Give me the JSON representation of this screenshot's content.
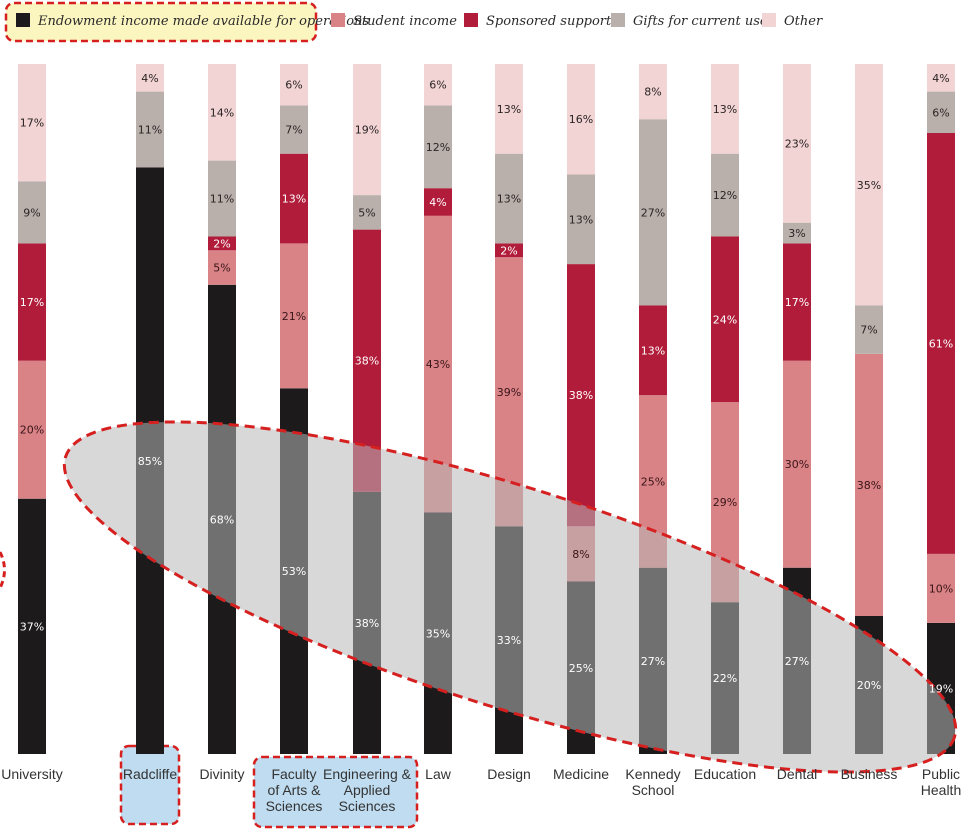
{
  "chart_data": {
    "type": "bar",
    "stacked": true,
    "orientation": "vertical",
    "unit": "%",
    "categories": [
      [
        "University"
      ],
      [
        "Radcliffe"
      ],
      [
        "Divinity"
      ],
      [
        "Faculty",
        "of Arts &",
        "Sciences"
      ],
      [
        "Engineering &",
        "Applied",
        "Sciences"
      ],
      [
        "Law"
      ],
      [
        "Design"
      ],
      [
        "Medicine"
      ],
      [
        "Kennedy",
        "School"
      ],
      [
        "Education"
      ],
      [
        "Dental"
      ],
      [
        "Business"
      ],
      [
        "Public",
        "Health"
      ]
    ],
    "series": [
      {
        "name": "Endowment income made available for operations",
        "color": "#1c1a1b",
        "label_color": "#ffffff",
        "values": [
          37,
          85,
          68,
          53,
          38,
          35,
          33,
          25,
          27,
          22,
          27,
          20,
          19
        ]
      },
      {
        "name": "Student income",
        "color": "#d98387",
        "label_color": "#3a1518",
        "values": [
          20,
          0,
          5,
          21,
          0,
          43,
          39,
          8,
          25,
          29,
          30,
          38,
          10
        ]
      },
      {
        "name": "Sponsored support",
        "color": "#b11c3a",
        "label_color": "#ffffff",
        "values": [
          17,
          0,
          2,
          13,
          38,
          4,
          2,
          38,
          13,
          24,
          17,
          0,
          61
        ]
      },
      {
        "name": "Gifts for current use",
        "color": "#b9b0ac",
        "label_color": "#2b2424",
        "values": [
          9,
          11,
          11,
          7,
          5,
          12,
          13,
          13,
          27,
          12,
          3,
          7,
          6
        ]
      },
      {
        "name": "Other",
        "color": "#f2d4d4",
        "label_color": "#2b2424",
        "values": [
          17,
          4,
          14,
          6,
          19,
          6,
          13,
          16,
          8,
          13,
          23,
          35,
          4
        ]
      }
    ],
    "ylim": [
      0,
      100
    ],
    "legend_position": "top",
    "grid": false,
    "highlighted_categories": [
      "Radcliffe",
      "Faculty of Arts & Sciences",
      "Engineering & Applied Sciences"
    ],
    "highlighted_legend_entry": "Endowment income made available for operations",
    "annotation": "dashed ellipse across the endowment segments",
    "colors": {
      "highlight_fill": "#bfdcf0",
      "legend_highlight_fill": "#fbf5c0",
      "annotation_outline": "#d62020",
      "annotation_fill": "#b8b8b8"
    }
  }
}
